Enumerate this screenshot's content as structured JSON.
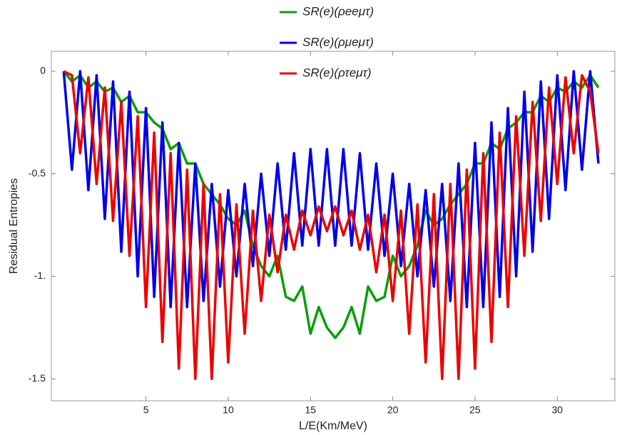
{
  "chart_data": {
    "type": "line",
    "x_label": "L/E(Km/MeV)",
    "y_label": "Residual Entropies",
    "xlim": [
      -0.75,
      33.5
    ],
    "ylim": [
      -1.607,
      0.097
    ],
    "xticks": [
      5,
      10,
      15,
      20,
      25,
      30
    ],
    "yticks": [
      0,
      -0.5,
      {
        "value": -1,
        "label": "-1."
      },
      -1.5
    ],
    "x": [
      0,
      0.5,
      1,
      1.5,
      2,
      2.5,
      3,
      3.5,
      4,
      4.5,
      5,
      5.5,
      6,
      6.5,
      7,
      7.5,
      8,
      8.5,
      9,
      9.5,
      10,
      10.5,
      11,
      11.5,
      12,
      12.5,
      13,
      13.5,
      14,
      14.5,
      15,
      15.5,
      16,
      16.5,
      17,
      17.5,
      18,
      18.5,
      19,
      19.5,
      20,
      20.5,
      21,
      21.5,
      22,
      22.5,
      23,
      23.5,
      24,
      24.5,
      25,
      25.5,
      26,
      26.5,
      27,
      27.5,
      28,
      28.5,
      29,
      29.5,
      30,
      30.5,
      31,
      31.5,
      32,
      32.5
    ],
    "series": [
      {
        "name": "SR(e)(ρeeμτ)",
        "color": "#0a9e0a",
        "values": [
          0,
          -0.05,
          -0.02,
          -0.08,
          -0.05,
          -0.1,
          -0.08,
          -0.15,
          -0.12,
          -0.2,
          -0.2,
          -0.25,
          -0.28,
          -0.38,
          -0.35,
          -0.45,
          -0.45,
          -0.55,
          -0.6,
          -0.65,
          -0.72,
          -0.75,
          -0.68,
          -0.85,
          -0.95,
          -1.0,
          -0.9,
          -1.1,
          -1.12,
          -1.05,
          -1.28,
          -1.15,
          -1.25,
          -1.3,
          -1.25,
          -1.15,
          -1.28,
          -1.05,
          -1.12,
          -1.1,
          -0.9,
          -1.0,
          -0.95,
          -0.85,
          -0.68,
          -0.75,
          -0.72,
          -0.65,
          -0.6,
          -0.55,
          -0.45,
          -0.45,
          -0.35,
          -0.38,
          -0.28,
          -0.25,
          -0.2,
          -0.2,
          -0.12,
          -0.15,
          -0.08,
          -0.1,
          -0.05,
          -0.08,
          -0.02,
          -0.08
        ]
      },
      {
        "name": "SR(e)(ρμeμτ)",
        "color": "#0000ee",
        "values": [
          0,
          -0.48,
          0,
          -0.58,
          -0.02,
          -0.72,
          -0.05,
          -0.88,
          -0.1,
          -1.0,
          -0.18,
          -1.1,
          -0.25,
          -1.15,
          -0.35,
          -1.15,
          -0.45,
          -1.12,
          -0.55,
          -1.05,
          -0.58,
          -1.0,
          -0.55,
          -0.95,
          -0.5,
          -0.9,
          -0.45,
          -0.87,
          -0.4,
          -0.85,
          -0.38,
          -0.85,
          -0.38,
          -0.85,
          -0.38,
          -0.85,
          -0.4,
          -0.87,
          -0.45,
          -0.9,
          -0.5,
          -0.95,
          -0.55,
          -1.0,
          -0.58,
          -1.05,
          -0.55,
          -1.12,
          -0.45,
          -1.15,
          -0.35,
          -1.15,
          -0.25,
          -1.1,
          -0.18,
          -1.0,
          -0.1,
          -0.88,
          -0.05,
          -0.72,
          -0.02,
          -0.58,
          0,
          -0.48,
          0,
          -0.45
        ]
      },
      {
        "name": "SR(e)(ρτeμτ)",
        "color": "#ee0000",
        "values": [
          0,
          -0.02,
          -0.4,
          -0.03,
          -0.55,
          -0.08,
          -0.73,
          -0.15,
          -0.9,
          -0.22,
          -1.15,
          -0.3,
          -1.32,
          -0.4,
          -1.45,
          -0.48,
          -1.5,
          -0.55,
          -1.5,
          -0.6,
          -1.42,
          -0.65,
          -1.28,
          -0.68,
          -1.12,
          -0.7,
          -0.98,
          -0.7,
          -0.87,
          -0.68,
          -0.8,
          -0.66,
          -0.78,
          -0.66,
          -0.8,
          -0.68,
          -0.87,
          -0.7,
          -0.98,
          -0.7,
          -1.12,
          -0.68,
          -1.28,
          -0.65,
          -1.42,
          -0.6,
          -1.5,
          -0.55,
          -1.5,
          -0.48,
          -1.45,
          -0.4,
          -1.32,
          -0.3,
          -1.15,
          -0.22,
          -0.9,
          -0.15,
          -0.73,
          -0.08,
          -0.55,
          -0.03,
          -0.4,
          -0.02,
          -0.1,
          -0.4
        ]
      }
    ]
  }
}
